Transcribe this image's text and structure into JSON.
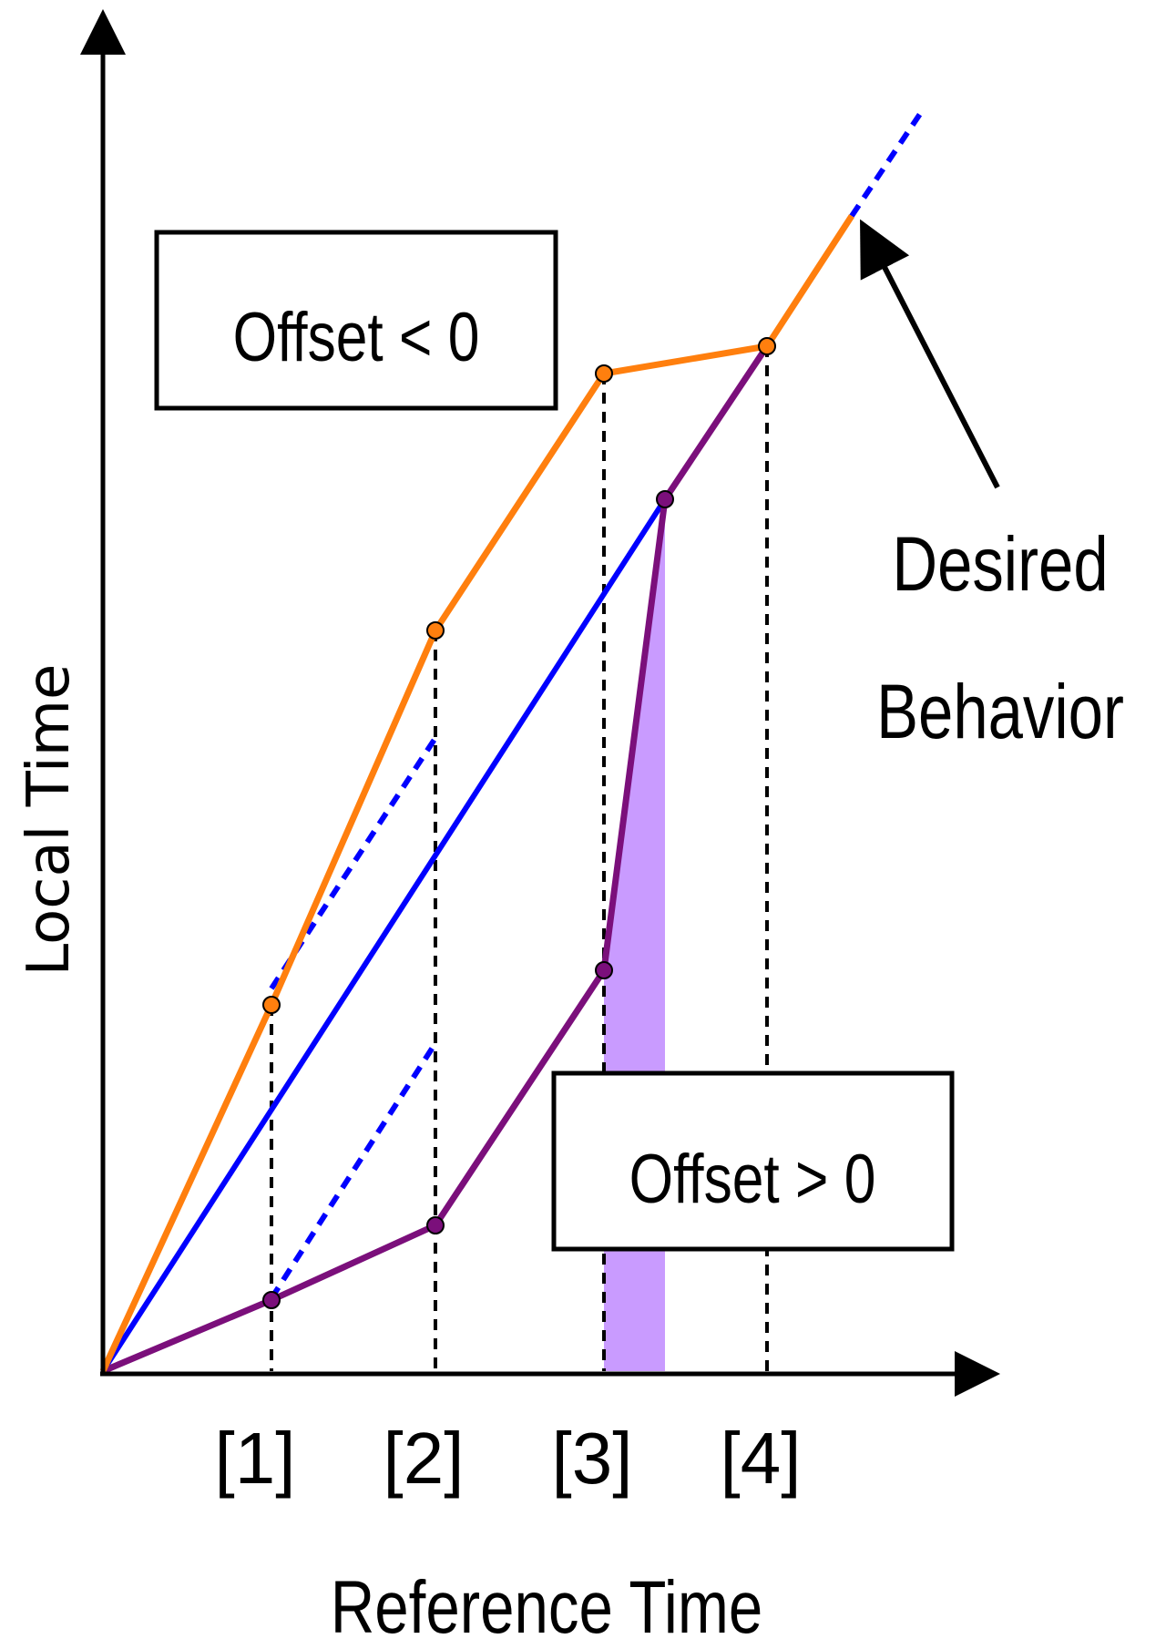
{
  "axes": {
    "x_title": "Reference Time",
    "y_title": "Local Time",
    "ticks": [
      "[1]",
      "[2]",
      "[3]",
      "[4]"
    ]
  },
  "boxes": {
    "negative_offset": "Offset < 0",
    "positive_offset": "Offset > 0"
  },
  "annotation": {
    "line1": "Desired",
    "line2": "Behavior"
  },
  "colors": {
    "orange": "#ff7f0e",
    "blue": "#0000ff",
    "purple": "#7b0f7b",
    "shade": "#c99bff",
    "axis": "#000000"
  }
}
